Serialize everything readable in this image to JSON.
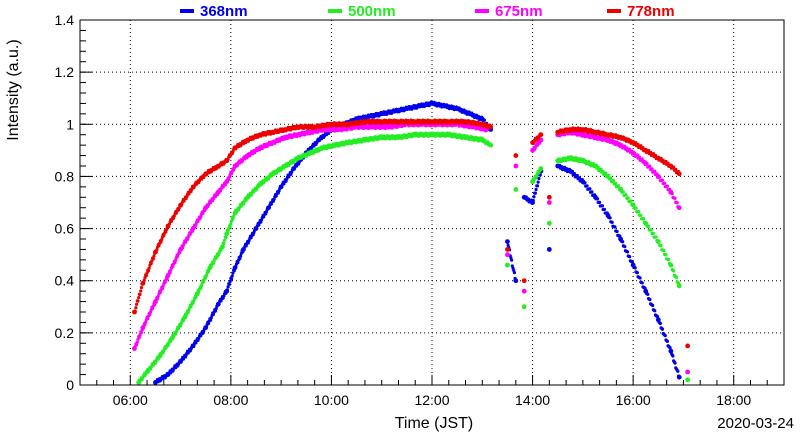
{
  "chart_data": {
    "type": "scatter",
    "xlabel": "Time (JST)",
    "ylabel": "Intensity (a.u.)",
    "date_label": "2020-03-24",
    "xlim": [
      "05:00",
      "19:00"
    ],
    "ylim": [
      0,
      1.4
    ],
    "x_ticks": [
      "06:00",
      "08:00",
      "10:00",
      "12:00",
      "14:00",
      "16:00",
      "18:00"
    ],
    "y_ticks": [
      "0",
      "0.2",
      "0.4",
      "0.6",
      "0.8",
      "1",
      "1.2",
      "1.4"
    ],
    "grid": true,
    "legend_position": "top",
    "series": [
      {
        "name": "368nm",
        "color": "#0000ee",
        "points": [
          [
            "06:30",
            0.01
          ],
          [
            "06:45",
            0.04
          ],
          [
            "07:00",
            0.09
          ],
          [
            "07:15",
            0.15
          ],
          [
            "07:30",
            0.22
          ],
          [
            "07:45",
            0.31
          ],
          [
            "07:55",
            0.36
          ],
          [
            "08:05",
            0.45
          ],
          [
            "08:15",
            0.52
          ],
          [
            "08:30",
            0.6
          ],
          [
            "08:45",
            0.68
          ],
          [
            "09:00",
            0.76
          ],
          [
            "09:15",
            0.83
          ],
          [
            "09:30",
            0.89
          ],
          [
            "09:45",
            0.94
          ],
          [
            "10:00",
            0.98
          ],
          [
            "10:15",
            1.0
          ],
          [
            "10:30",
            1.02
          ],
          [
            "10:45",
            1.03
          ],
          [
            "11:00",
            1.04
          ],
          [
            "11:15",
            1.05
          ],
          [
            "11:30",
            1.06
          ],
          [
            "11:45",
            1.07
          ],
          [
            "12:00",
            1.08
          ],
          [
            "12:15",
            1.07
          ],
          [
            "12:30",
            1.06
          ],
          [
            "12:45",
            1.04
          ],
          [
            "13:00",
            1.02
          ],
          [
            "13:10",
            0.98
          ],
          [
            "13:30",
            0.55
          ],
          [
            "13:40",
            0.4
          ],
          [
            "13:50",
            0.72
          ],
          [
            "14:00",
            0.7
          ],
          [
            "14:10",
            0.82
          ],
          [
            "14:20",
            0.52
          ],
          [
            "14:30",
            0.84
          ],
          [
            "14:45",
            0.82
          ],
          [
            "15:00",
            0.78
          ],
          [
            "15:15",
            0.72
          ],
          [
            "15:30",
            0.65
          ],
          [
            "15:45",
            0.56
          ],
          [
            "16:00",
            0.46
          ],
          [
            "16:15",
            0.36
          ],
          [
            "16:30",
            0.25
          ],
          [
            "16:45",
            0.13
          ],
          [
            "16:55",
            0.03
          ]
        ]
      },
      {
        "name": "500nm",
        "color": "#22ee22",
        "points": [
          [
            "06:10",
            0.01
          ],
          [
            "06:20",
            0.05
          ],
          [
            "06:35",
            0.11
          ],
          [
            "06:50",
            0.18
          ],
          [
            "07:05",
            0.26
          ],
          [
            "07:20",
            0.35
          ],
          [
            "07:35",
            0.45
          ],
          [
            "07:50",
            0.53
          ],
          [
            "07:55",
            0.58
          ],
          [
            "08:05",
            0.66
          ],
          [
            "08:20",
            0.72
          ],
          [
            "08:35",
            0.77
          ],
          [
            "08:50",
            0.81
          ],
          [
            "09:05",
            0.84
          ],
          [
            "09:20",
            0.87
          ],
          [
            "09:35",
            0.89
          ],
          [
            "09:50",
            0.91
          ],
          [
            "10:05",
            0.92
          ],
          [
            "10:20",
            0.93
          ],
          [
            "10:40",
            0.94
          ],
          [
            "11:00",
            0.95
          ],
          [
            "11:20",
            0.95
          ],
          [
            "11:40",
            0.96
          ],
          [
            "12:00",
            0.96
          ],
          [
            "12:20",
            0.96
          ],
          [
            "12:40",
            0.95
          ],
          [
            "13:00",
            0.94
          ],
          [
            "13:10",
            0.92
          ],
          [
            "13:30",
            0.46
          ],
          [
            "13:40",
            0.75
          ],
          [
            "13:50",
            0.3
          ],
          [
            "14:00",
            0.78
          ],
          [
            "14:10",
            0.83
          ],
          [
            "14:20",
            0.62
          ],
          [
            "14:30",
            0.86
          ],
          [
            "14:45",
            0.87
          ],
          [
            "15:00",
            0.86
          ],
          [
            "15:15",
            0.84
          ],
          [
            "15:30",
            0.8
          ],
          [
            "15:45",
            0.75
          ],
          [
            "16:00",
            0.69
          ],
          [
            "16:15",
            0.62
          ],
          [
            "16:30",
            0.55
          ],
          [
            "16:45",
            0.46
          ],
          [
            "16:55",
            0.38
          ],
          [
            "17:05",
            0.02
          ]
        ]
      },
      {
        "name": "675nm",
        "color": "#ff00ff",
        "points": [
          [
            "06:05",
            0.14
          ],
          [
            "06:15",
            0.22
          ],
          [
            "06:30",
            0.32
          ],
          [
            "06:45",
            0.42
          ],
          [
            "07:00",
            0.52
          ],
          [
            "07:15",
            0.6
          ],
          [
            "07:30",
            0.68
          ],
          [
            "07:45",
            0.74
          ],
          [
            "07:55",
            0.78
          ],
          [
            "08:05",
            0.84
          ],
          [
            "08:20",
            0.88
          ],
          [
            "08:35",
            0.91
          ],
          [
            "08:50",
            0.93
          ],
          [
            "09:05",
            0.95
          ],
          [
            "09:20",
            0.96
          ],
          [
            "09:35",
            0.97
          ],
          [
            "09:50",
            0.98
          ],
          [
            "10:10",
            0.98
          ],
          [
            "10:30",
            0.99
          ],
          [
            "10:50",
            0.99
          ],
          [
            "11:10",
            0.99
          ],
          [
            "11:30",
            1.0
          ],
          [
            "11:50",
            1.0
          ],
          [
            "12:10",
            1.0
          ],
          [
            "12:30",
            1.0
          ],
          [
            "12:50",
            0.99
          ],
          [
            "13:05",
            0.98
          ],
          [
            "13:30",
            0.5
          ],
          [
            "13:40",
            0.84
          ],
          [
            "13:50",
            0.36
          ],
          [
            "14:00",
            0.9
          ],
          [
            "14:10",
            0.94
          ],
          [
            "14:20",
            0.7
          ],
          [
            "14:30",
            0.96
          ],
          [
            "14:45",
            0.97
          ],
          [
            "15:00",
            0.96
          ],
          [
            "15:15",
            0.95
          ],
          [
            "15:30",
            0.94
          ],
          [
            "15:45",
            0.92
          ],
          [
            "16:00",
            0.89
          ],
          [
            "16:15",
            0.85
          ],
          [
            "16:30",
            0.8
          ],
          [
            "16:45",
            0.74
          ],
          [
            "16:55",
            0.68
          ],
          [
            "17:05",
            0.05
          ]
        ]
      },
      {
        "name": "778nm",
        "color": "#ee0000",
        "points": [
          [
            "06:05",
            0.28
          ],
          [
            "06:15",
            0.39
          ],
          [
            "06:30",
            0.51
          ],
          [
            "06:45",
            0.61
          ],
          [
            "07:00",
            0.69
          ],
          [
            "07:15",
            0.76
          ],
          [
            "07:30",
            0.81
          ],
          [
            "07:45",
            0.84
          ],
          [
            "07:55",
            0.86
          ],
          [
            "08:05",
            0.91
          ],
          [
            "08:20",
            0.94
          ],
          [
            "08:35",
            0.96
          ],
          [
            "08:50",
            0.97
          ],
          [
            "09:05",
            0.98
          ],
          [
            "09:20",
            0.99
          ],
          [
            "09:40",
            0.99
          ],
          [
            "10:00",
            1.0
          ],
          [
            "10:20",
            1.0
          ],
          [
            "10:40",
            1.01
          ],
          [
            "11:00",
            1.01
          ],
          [
            "11:20",
            1.01
          ],
          [
            "11:40",
            1.01
          ],
          [
            "12:00",
            1.01
          ],
          [
            "12:20",
            1.01
          ],
          [
            "12:40",
            1.01
          ],
          [
            "13:00",
            1.0
          ],
          [
            "13:10",
            0.99
          ],
          [
            "13:30",
            0.52
          ],
          [
            "13:40",
            0.88
          ],
          [
            "13:50",
            0.4
          ],
          [
            "14:00",
            0.93
          ],
          [
            "14:10",
            0.96
          ],
          [
            "14:20",
            0.72
          ],
          [
            "14:30",
            0.97
          ],
          [
            "14:45",
            0.98
          ],
          [
            "15:00",
            0.98
          ],
          [
            "15:15",
            0.97
          ],
          [
            "15:30",
            0.96
          ],
          [
            "15:45",
            0.95
          ],
          [
            "16:00",
            0.93
          ],
          [
            "16:15",
            0.9
          ],
          [
            "16:30",
            0.87
          ],
          [
            "16:45",
            0.84
          ],
          [
            "16:55",
            0.81
          ],
          [
            "17:05",
            0.15
          ]
        ]
      }
    ]
  }
}
